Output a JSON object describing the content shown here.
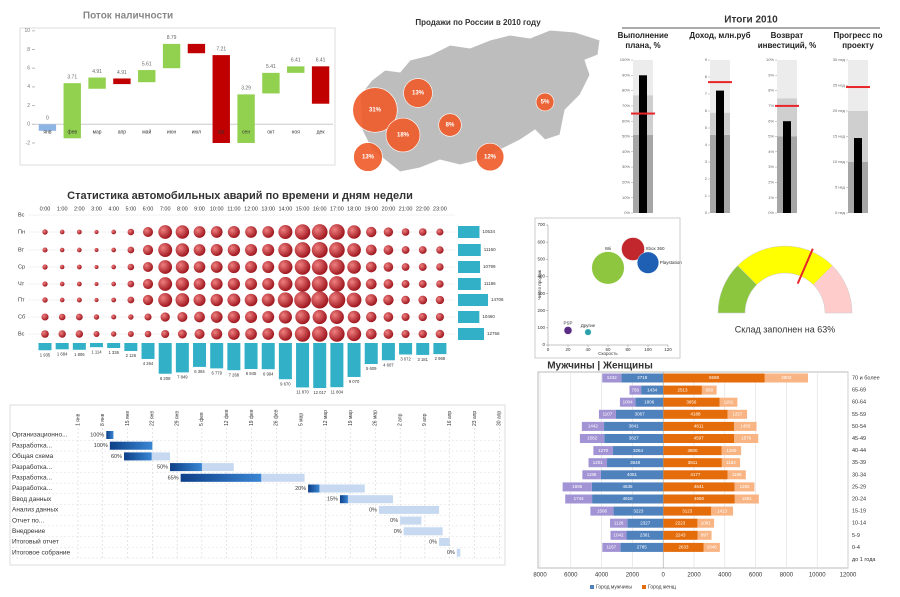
{
  "chart_data": [
    {
      "type": "waterfall",
      "title": "Поток наличности",
      "categories": [
        "янв",
        "фев",
        "мар",
        "апр",
        "май",
        "июн",
        "июл",
        "авг",
        "сен",
        "окт",
        "ноя",
        "дек"
      ],
      "start": [
        0,
        -1.5,
        3.8,
        4.9,
        4.5,
        6.0,
        8.6,
        7.4,
        -2,
        3.3,
        5.5,
        6.2
      ],
      "end": [
        -0.7,
        4.4,
        5.0,
        4.3,
        5.8,
        8.6,
        7.6,
        -2,
        3.2,
        5.5,
        6.2,
        2.2
      ],
      "labels": [
        0,
        3.71,
        4.91,
        4.91,
        5.61,
        8.79,
        null,
        7.21,
        3.29,
        5.41,
        6.41,
        6.41
      ],
      "colors": [
        "#8eb4e3",
        "#92d050",
        "#92d050",
        "#c00000",
        "#92d050",
        "#92d050",
        "#c00000",
        "#c00000",
        "#92d050",
        "#92d050",
        "#92d050",
        "#c00000"
      ],
      "ylim": [
        -3.5,
        10.3
      ],
      "yticks": [
        -2,
        0,
        2,
        4,
        6,
        8,
        10
      ]
    },
    {
      "type": "bubble-map",
      "title": "Продажи по России в 2010 году",
      "values": [
        31,
        13,
        18,
        8,
        5,
        13,
        12
      ],
      "value_labels": [
        "31%",
        "13%",
        "18%",
        "8%",
        "5%",
        "13%",
        "12%"
      ],
      "color": "#f05a28"
    },
    {
      "type": "bullet",
      "title": "Итоги 2010",
      "bar_color": "#000000",
      "target_color": "#e8262a",
      "panels": [
        {
          "label": "Выполнение плана, %",
          "value": 90,
          "target": 65,
          "ranges": [
            51,
            77,
            100
          ],
          "ylim": [
            0,
            100
          ],
          "yticks": [
            {
              "value": 0,
              "label": "0%"
            },
            {
              "value": 10,
              "label": "10%"
            },
            {
              "value": 20,
              "label": "20%"
            },
            {
              "value": 30,
              "label": "30%"
            },
            {
              "value": 40,
              "label": "40%"
            },
            {
              "value": 50,
              "label": "50%"
            },
            {
              "value": 60,
              "label": "60%"
            },
            {
              "value": 70,
              "label": "70%"
            },
            {
              "value": 80,
              "label": "80%"
            },
            {
              "value": 90,
              "label": "90%"
            },
            {
              "value": 100,
              "label": "100%"
            }
          ]
        },
        {
          "label": "Доход, млн.руб",
          "value": 7.2,
          "target": 7.7,
          "ranges": [
            4.6,
            5.9,
            9
          ],
          "ylim": [
            0,
            9
          ],
          "yticks": [
            0,
            1,
            2,
            3,
            4,
            5,
            6,
            7,
            8,
            9
          ]
        },
        {
          "label": "Возврат инвестиций, %",
          "value": 6,
          "target": 7,
          "ranges": [
            5,
            7.5,
            10
          ],
          "ylim": [
            0,
            10
          ],
          "yticks": [
            {
              "value": 0,
              "label": "0%"
            },
            {
              "value": 1,
              "label": "1%"
            },
            {
              "value": 2,
              "label": "2%"
            },
            {
              "value": 3,
              "label": "3%"
            },
            {
              "value": 4,
              "label": "4%"
            },
            {
              "value": 5,
              "label": "5%"
            },
            {
              "value": 6,
              "label": "6%"
            },
            {
              "value": 7,
              "label": "7%"
            },
            {
              "value": 8,
              "label": "8%"
            },
            {
              "value": 9,
              "label": "9%"
            },
            {
              "value": 10,
              "label": "10%"
            }
          ]
        },
        {
          "label": "Прогресс по проекту",
          "value": 14.7,
          "target": 24.7,
          "ranges": [
            10,
            20,
            30
          ],
          "ylim": [
            0,
            30
          ],
          "yticks": [
            {
              "value": 0,
              "label": "0 нед"
            },
            {
              "value": 5,
              "label": "5 нед"
            },
            {
              "value": 10,
              "label": "10 нед"
            },
            {
              "value": 15,
              "label": "15 нед"
            },
            {
              "value": 20,
              "label": "20 нед"
            },
            {
              "value": 25,
              "label": "25 нед"
            },
            {
              "value": 30,
              "label": "30 нед"
            }
          ]
        }
      ]
    },
    {
      "type": "bubble-matrix",
      "title": "Статистика автомобильных аварий по времени и дням недели",
      "categories": [
        "0:00",
        "1:00",
        "2:00",
        "3:00",
        "4:00",
        "5:00",
        "6:00",
        "7:00",
        "8:00",
        "9:00",
        "10:00",
        "11:00",
        "12:00",
        "13:00",
        "14:00",
        "15:00",
        "16:00",
        "17:00",
        "18:00",
        "19:00",
        "20:00",
        "21:00",
        "22:00",
        "23:00"
      ],
      "rows": [
        "Вс",
        "Пн",
        "Вт",
        "Ср",
        "Чт",
        "Пт",
        "Сб",
        "Вс"
      ],
      "values": [
        null,
        [
          200,
          150,
          160,
          120,
          150,
          300,
          700,
          1300,
          1250,
          950,
          950,
          1000,
          950,
          950,
          1350,
          1650,
          1700,
          1700,
          1250,
          750,
          600,
          400,
          400,
          350
        ],
        [
          180,
          140,
          150,
          110,
          150,
          310,
          720,
          1350,
          1250,
          950,
          980,
          1050,
          1000,
          1000,
          1400,
          1700,
          1750,
          1700,
          1300,
          800,
          650,
          420,
          420,
          380
        ],
        [
          190,
          140,
          160,
          110,
          150,
          300,
          700,
          1300,
          1200,
          920,
          960,
          1030,
          980,
          990,
          1380,
          1680,
          1720,
          1690,
          1280,
          790,
          640,
          420,
          430,
          380
        ],
        [
          190,
          150,
          160,
          110,
          150,
          310,
          710,
          1320,
          1230,
          940,
          970,
          1040,
          990,
          1000,
          1390,
          1700,
          1740,
          1700,
          1290,
          800,
          650,
          430,
          430,
          390
        ],
        [
          200,
          150,
          170,
          120,
          160,
          320,
          730,
          1350,
          1300,
          1000,
          1050,
          1150,
          1100,
          1150,
          1600,
          1950,
          2000,
          1950,
          1500,
          950,
          750,
          500,
          520,
          480
        ],
        [
          350,
          300,
          320,
          200,
          180,
          200,
          350,
          600,
          700,
          800,
          950,
          1050,
          1000,
          980,
          1200,
          1450,
          1400,
          1350,
          1100,
          750,
          650,
          450,
          480,
          450
        ],
        [
          400,
          380,
          380,
          250,
          200,
          250,
          300,
          450,
          550,
          700,
          850,
          950,
          950,
          950,
          1250,
          1650,
          1650,
          1650,
          1400,
          800,
          650,
          450,
          480,
          500
        ]
      ],
      "row_totals": [
        null,
        10534,
        11160,
        10799,
        11186,
        14706,
        10460,
        12756
      ],
      "column_totals": [
        1935,
        1684,
        1806,
        1114,
        1336,
        2126,
        4264,
        8208,
        7849,
        6384,
        6779,
        7268,
        6945,
        6994,
        9670,
        11870,
        12017,
        11804,
        9070,
        5609,
        4607,
        3072,
        3181,
        2968
      ],
      "column_total_labels": [
        "1 935",
        "1 684",
        "1 806",
        "1 114",
        "1 336",
        "2 126",
        "4 264",
        "8 208",
        "7 849",
        "6 384",
        "6 779",
        "7 268",
        "6 945",
        "6 994",
        "9 670",
        "11 870",
        "12 017",
        "11 804",
        "9 070",
        "5 609",
        "4 607",
        "3 072",
        "3 181",
        "2 968"
      ],
      "bubble_color": "#c0232b",
      "bar_color": "#31b0c8"
    },
    {
      "type": "bubble",
      "x_label": "Скорость",
      "y_label": "Число продаж",
      "points": [
        {
          "name": "PSP",
          "color": "#5b2c83",
          "x": 20,
          "y": 85,
          "size": 3
        },
        {
          "name": "Другие",
          "color": "#2aa1a8",
          "x": 40,
          "y": 75,
          "size": 2
        },
        {
          "name": "Wii",
          "color": "#8ec63f",
          "x": 60,
          "y": 450,
          "size": 50
        },
        {
          "name": "Xbox 360",
          "color": "#c1272d",
          "x": 85,
          "y": 560,
          "size": 25
        },
        {
          "name": "Playstation",
          "color": "#1f5fb4",
          "x": 100,
          "y": 480,
          "size": 22
        }
      ],
      "xlim": [
        0,
        120
      ],
      "xticks": [
        0,
        20,
        40,
        60,
        80,
        100,
        120
      ],
      "ylim": [
        0,
        700
      ],
      "yticks": [
        0,
        100,
        200,
        300,
        400,
        500,
        600,
        700
      ]
    },
    {
      "type": "gauge",
      "title": "Склад заполнен на 63%",
      "value": 63,
      "bands": [
        25,
        75,
        100
      ],
      "band_colors": [
        "#8cc63f",
        "#ffff00",
        "#ffcccc"
      ],
      "needle_color": "#e8262a"
    },
    {
      "type": "pyramid",
      "title": "Мужчины | Женщины",
      "categories": [
        "70 и более",
        "65-69",
        "60-64",
        "55-59",
        "50-54",
        "45-49",
        "40-44",
        "35-39",
        "30-34",
        "25-29",
        "20-24",
        "15-19",
        "10-14",
        "5-9",
        "0-4",
        "до 1 года"
      ],
      "series": [
        {
          "name": "Город мужчины",
          "color": "#4f81bd",
          "values": [
            -2718,
            -1434,
            -1806,
            -3067,
            -3841,
            -3827,
            -3264,
            -3648,
            -4051,
            -4635,
            -4618,
            -3223,
            -2327,
            -2381,
            -2785,
            null
          ],
          "value_labels": [
            "2718",
            "1434",
            "1806",
            "3067",
            "3841",
            "3827",
            "3264",
            "3648",
            "4051",
            "4635",
            "4618",
            "3223",
            "2327",
            "2381",
            "2785",
            null
          ]
        },
        {
          "color": "#a294d4",
          "values": [
            -1242,
            -756,
            -1004,
            -1107,
            -1442,
            -1582,
            -1270,
            -1201,
            -1198,
            -1895,
            -1744,
            -1506,
            -1126,
            -1042,
            -1167,
            null
          ],
          "value_labels": [
            "1242",
            "756",
            "1004",
            "1107",
            "1442",
            "1582",
            "1270",
            "1201",
            "1198",
            "1895",
            "1744",
            "1506",
            "1126",
            "1042",
            "1167",
            null
          ]
        },
        {
          "name": "Город женщ",
          "color": "#e46c0a",
          "values": [
            6598,
            2513,
            3656,
            4188,
            4611,
            4597,
            3800,
            3811,
            4177,
            4641,
            4650,
            3123,
            2223,
            2243,
            2633,
            null
          ]
        },
        {
          "color": "#f8b483",
          "values": [
            2803,
            958,
            1161,
            1257,
            1450,
            1576,
            1260,
            1182,
            1188,
            1282,
            1561,
            1413,
            1081,
            897,
            1046,
            null
          ]
        }
      ],
      "xlim": [
        -8000,
        12000
      ],
      "xticks": [
        {
          "value": -8000,
          "label": "8000"
        },
        {
          "value": -6000,
          "label": "6000"
        },
        {
          "value": -4000,
          "label": "4000"
        },
        {
          "value": -2000,
          "label": "2000"
        },
        0,
        2000,
        4000,
        6000,
        8000,
        10000,
        12000
      ]
    },
    {
      "type": "gantt",
      "tasks": [
        "Организационно...",
        "Разработка...",
        "Общая схема",
        "Разработка...",
        "Разработка...",
        "Разработка...",
        "Ввод данных",
        "Анализ данных",
        "Отчет по...",
        "Внедрение",
        "Итоговый отчет",
        "Итоговое собрание"
      ],
      "start": [
        8,
        9,
        13,
        26,
        29,
        65,
        74,
        85,
        91,
        92,
        102,
        107
      ],
      "duration": [
        2,
        12,
        13,
        18,
        35,
        16,
        15,
        17,
        6,
        11,
        3,
        1
      ],
      "values": [
        100,
        100,
        60,
        50,
        65,
        20,
        15,
        0,
        0,
        0,
        0,
        0
      ],
      "value_labels": [
        "100%",
        "100%",
        "60%",
        "50%",
        "65%",
        "20%",
        "15%",
        "0%",
        "0%",
        "0%",
        "0%",
        "0%"
      ],
      "xlim": [
        0,
        120
      ],
      "xticks": [
        {
          "value": 0,
          "label": "1 янв"
        },
        {
          "value": 7,
          "label": "8 янв"
        },
        {
          "value": 14,
          "label": "15 янв"
        },
        {
          "value": 21,
          "label": "22 янв"
        },
        {
          "value": 28,
          "label": "29 янв"
        },
        {
          "value": 35,
          "label": "5 фев"
        },
        {
          "value": 42,
          "label": "12 фев"
        },
        {
          "value": 49,
          "label": "19 фев"
        },
        {
          "value": 56,
          "label": "26 фев"
        },
        {
          "value": 63,
          "label": "5 мар"
        },
        {
          "value": 70,
          "label": "12 мар"
        },
        {
          "value": 77,
          "label": "19 мар"
        },
        {
          "value": 84,
          "label": "26 мар"
        },
        {
          "value": 91,
          "label": "2 апр"
        },
        {
          "value": 98,
          "label": "9 апр"
        },
        {
          "value": 105,
          "label": "16 апр"
        },
        {
          "value": 112,
          "label": "23 апр"
        },
        {
          "value": 119,
          "label": "30 апр"
        }
      ],
      "done_color": "#1a5fb4",
      "todo_color": "#c6d9f1"
    }
  ]
}
